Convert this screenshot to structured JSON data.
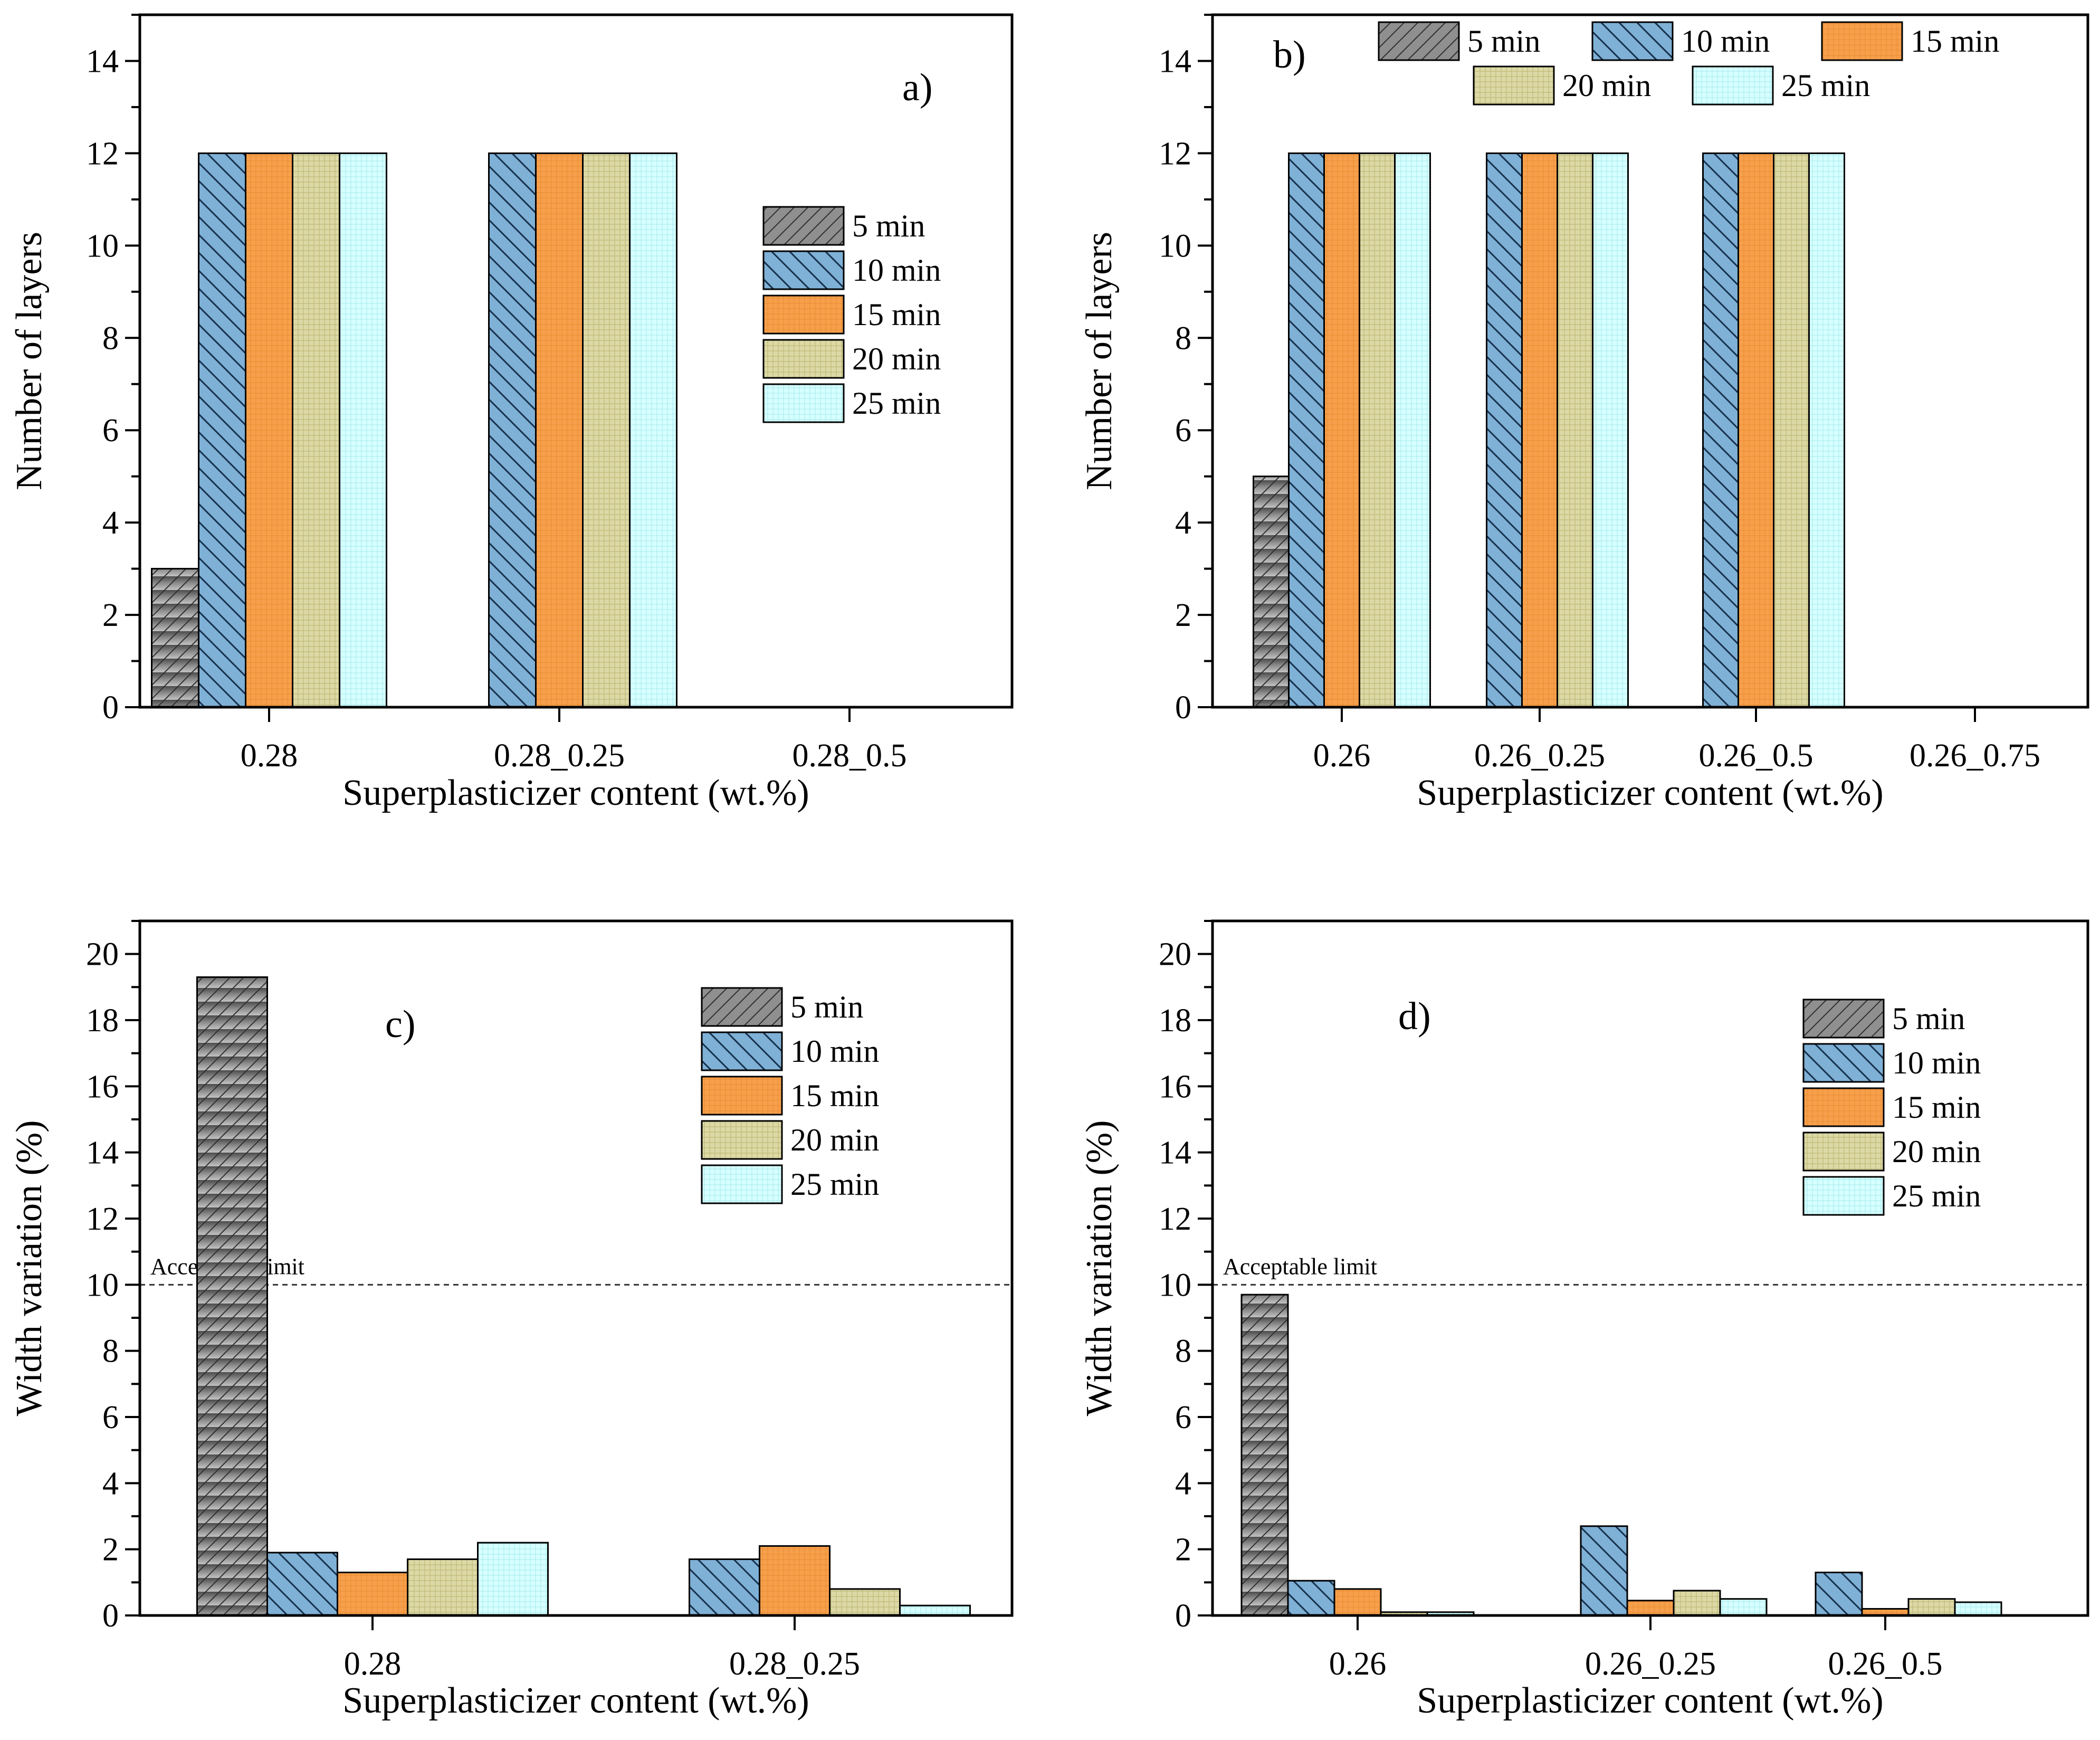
{
  "colors": {
    "5 min": "#8a8a8a",
    "10 min": "#7fb0d6",
    "15 min": "#f6a04d",
    "20 min": "#ddd9a6",
    "25 min": "#d6ffff",
    "limit_line": "#333333"
  },
  "chart_data": [
    {
      "id": "a",
      "type": "bar",
      "panel_label": "a)",
      "xlabel": "Superplasticizer content (wt.%)",
      "ylabel": "Number of layers",
      "ylim": [
        0,
        15
      ],
      "yticks": [
        "0",
        "2",
        "4",
        "6",
        "8",
        "10",
        "12",
        "14"
      ],
      "categories": [
        "0.28",
        "0.28_0.25",
        "0.28_0.5"
      ],
      "legend_position": "middle-right",
      "series": [
        {
          "name": "5 min",
          "values": [
            3,
            0,
            0
          ]
        },
        {
          "name": "10 min",
          "values": [
            12,
            12,
            0
          ]
        },
        {
          "name": "15 min",
          "values": [
            12,
            12,
            0
          ]
        },
        {
          "name": "20 min",
          "values": [
            12,
            12,
            0
          ]
        },
        {
          "name": "25 min",
          "values": [
            12,
            12,
            0
          ]
        }
      ]
    },
    {
      "id": "b",
      "type": "bar",
      "panel_label": "b)",
      "xlabel": "Superplasticizer content (wt.%)",
      "ylabel": "Number of layers",
      "ylim": [
        0,
        15
      ],
      "yticks": [
        "0",
        "2",
        "4",
        "6",
        "8",
        "10",
        "12",
        "14"
      ],
      "categories": [
        "0.26",
        "0.26_0.25",
        "0.26_0.5",
        "0.26_0.75"
      ],
      "legend_position": "top",
      "series": [
        {
          "name": "5 min",
          "values": [
            5,
            0,
            0,
            0
          ]
        },
        {
          "name": "10 min",
          "values": [
            12,
            12,
            12,
            0
          ]
        },
        {
          "name": "15 min",
          "values": [
            12,
            12,
            12,
            0
          ]
        },
        {
          "name": "20 min",
          "values": [
            12,
            12,
            12,
            0
          ]
        },
        {
          "name": "25 min",
          "values": [
            12,
            12,
            12,
            0
          ]
        }
      ]
    },
    {
      "id": "c",
      "type": "bar",
      "panel_label": "c)",
      "xlabel": "Superplasticizer content (wt.%)",
      "ylabel": "Width variation (%)",
      "ylim": [
        0,
        21
      ],
      "yticks": [
        "0",
        "2",
        "4",
        "6",
        "8",
        "10",
        "12",
        "14",
        "16",
        "18",
        "20"
      ],
      "categories": [
        "0.28",
        "0.28_0.25"
      ],
      "legend_position": "top-right",
      "limit_value": 10,
      "limit_label": "Acceptable limit",
      "series": [
        {
          "name": "5 min",
          "values": [
            19.3,
            0
          ]
        },
        {
          "name": "10 min",
          "values": [
            1.9,
            1.7
          ]
        },
        {
          "name": "15 min",
          "values": [
            1.3,
            2.1
          ]
        },
        {
          "name": "20 min",
          "values": [
            1.7,
            0.8
          ]
        },
        {
          "name": "25 min",
          "values": [
            2.2,
            0.3
          ]
        }
      ]
    },
    {
      "id": "d",
      "type": "bar",
      "panel_label": "d)",
      "xlabel": "Superplasticizer content (wt.%)",
      "ylabel": "Width variation (%)",
      "ylim": [
        0,
        21
      ],
      "yticks": [
        "0",
        "2",
        "4",
        "6",
        "8",
        "10",
        "12",
        "14",
        "16",
        "18",
        "20"
      ],
      "categories": [
        "0.26",
        "0.26_0.25",
        "0.26_0.5"
      ],
      "legend_position": "top-right",
      "limit_value": 10,
      "limit_label": "Acceptable limit",
      "series": [
        {
          "name": "5 min",
          "values": [
            9.7,
            0,
            0
          ]
        },
        {
          "name": "10 min",
          "values": [
            1.05,
            2.7,
            1.3
          ]
        },
        {
          "name": "15 min",
          "values": [
            0.8,
            0.45,
            0.2
          ]
        },
        {
          "name": "20 min",
          "values": [
            0.1,
            0.75,
            0.5
          ]
        },
        {
          "name": "25 min",
          "values": [
            0.1,
            0.5,
            0.4
          ]
        }
      ]
    }
  ]
}
